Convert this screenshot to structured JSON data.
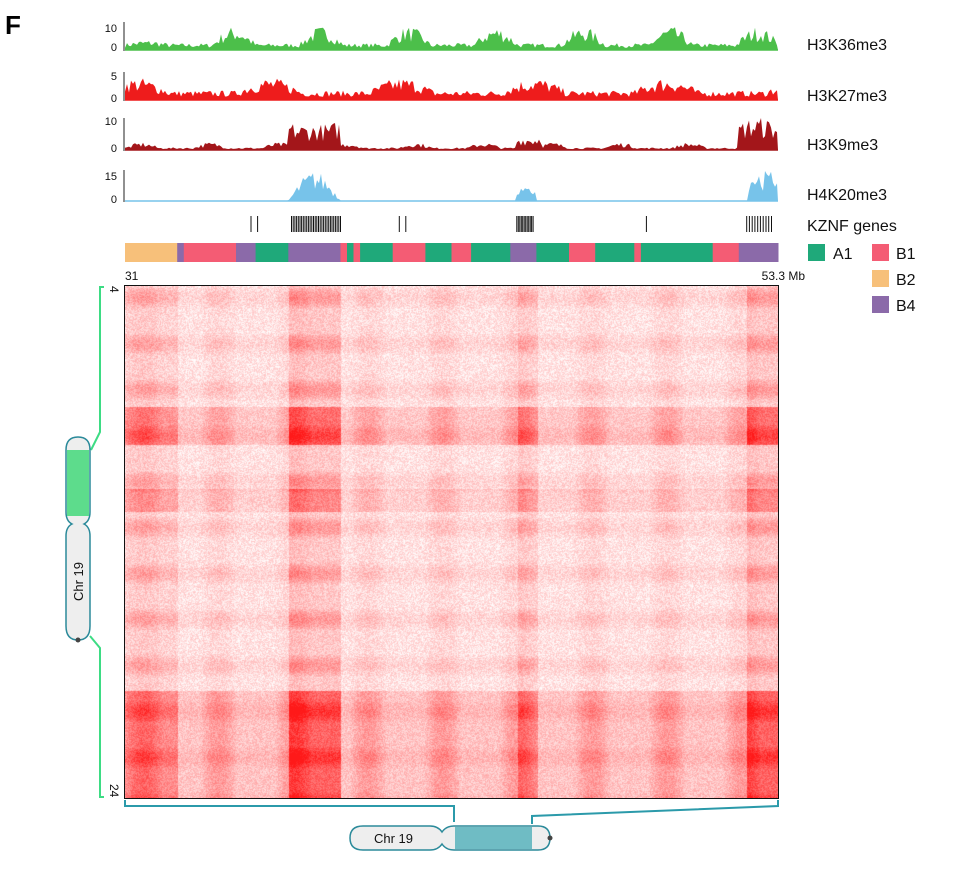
{
  "panel_label": "F",
  "tracks": [
    {
      "label": "H3K36me3",
      "ymax": "10",
      "ymin": "0",
      "color": "#4cbf4a"
    },
    {
      "label": "H3K27me3",
      "ymax": "5",
      "ymin": "0",
      "color": "#ee1c1c"
    },
    {
      "label": "H3K9me3",
      "ymax": "10",
      "ymin": "0",
      "color": "#a3161a"
    },
    {
      "label": "H4K20me3",
      "ymax": "15",
      "ymin": "0",
      "color": "#77c3ea"
    }
  ],
  "kznf": {
    "label": "KZNF genes"
  },
  "legend": [
    {
      "name": "A1",
      "color": "#1fa97a"
    },
    {
      "name": "B1",
      "color": "#f45c74"
    },
    {
      "name": "B2",
      "color": "#f7c07a"
    },
    {
      "name": "B4",
      "color": "#8b6aa9"
    }
  ],
  "x_axis": {
    "start": "31",
    "end": "53.3 Mb"
  },
  "y_axis": {
    "top": "4",
    "bottom": "24"
  },
  "chromosome": {
    "label": "Chr 19",
    "highlight_color": "#5ddc8c",
    "highlight_color_h": "#6fbcc4"
  },
  "hic": {
    "color": "#ff1a1a"
  }
}
